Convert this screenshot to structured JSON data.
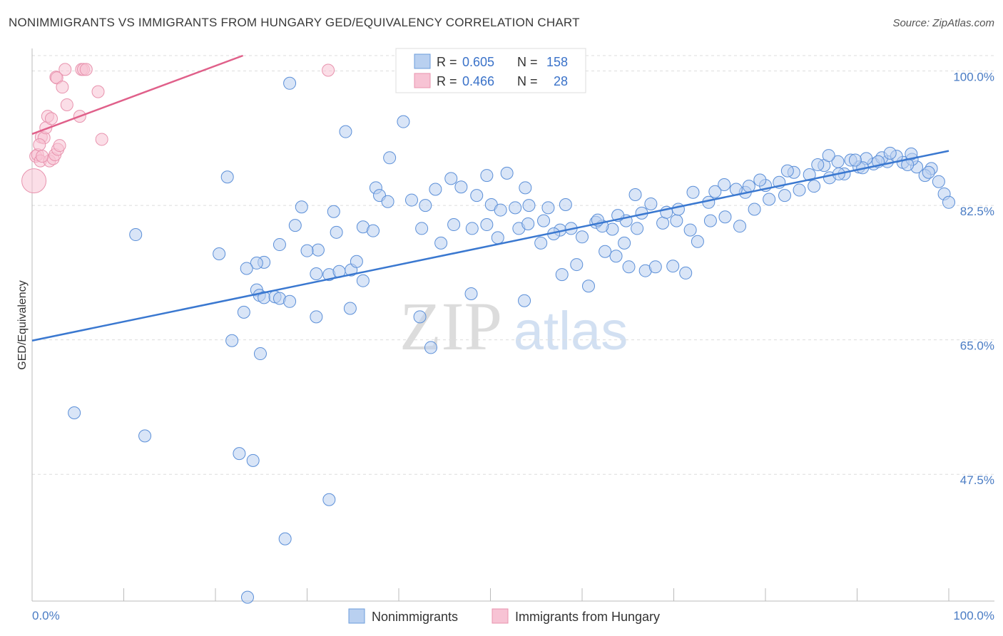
{
  "title": "NONIMMIGRANTS VS IMMIGRANTS FROM HUNGARY GED/EQUIVALENCY CORRELATION CHART",
  "source": "Source: ZipAtlas.com",
  "watermark": {
    "zip": "ZIP",
    "atlas": "atlas"
  },
  "colors": {
    "blue": "#3a78d0",
    "blue_fill": "#b9d0f0",
    "pink": "#e0608a",
    "pink_fill": "#f7c3d4",
    "grid": "#dddddd",
    "tick_text": "#4a7cc4"
  },
  "chart_data": {
    "type": "scatter",
    "title": "NONIMMIGRANTS VS IMMIGRANTS FROM HUNGARY GED/EQUIVALENCY CORRELATION CHART",
    "xlabel": "",
    "ylabel": "GED/Equivalency",
    "xlim": [
      0,
      100
    ],
    "ylim": [
      31,
      102
    ],
    "x_tick_labels": [
      "0.0%",
      "100.0%"
    ],
    "y_ticks": [
      47.5,
      65.0,
      82.5,
      100.0
    ],
    "y_tick_labels": [
      "47.5%",
      "65.0%",
      "82.5%",
      "100.0%"
    ],
    "grid": "horizontal dashed",
    "legend": {
      "placement": "top-center",
      "entries": [
        {
          "r_label": "R =",
          "r": "0.605",
          "n_label": "N =",
          "n": "158"
        },
        {
          "r_label": "R =",
          "r": "0.466",
          "n_label": "N =",
          "n": "28"
        }
      ]
    },
    "bottom_legend": [
      "Nonimmigrants",
      "Immigrants from Hungary"
    ],
    "series": [
      {
        "name": "Nonimmigrants",
        "color": "#3a78d0",
        "trendline": {
          "x": [
            0,
            100
          ],
          "y": [
            64.9,
            89.6
          ]
        },
        "points": [
          [
            28.1,
            98.4
          ],
          [
            34.2,
            92.1
          ],
          [
            40.5,
            93.4
          ],
          [
            39.0,
            88.7
          ],
          [
            21.3,
            86.2
          ],
          [
            37.5,
            84.8
          ],
          [
            37.9,
            83.8
          ],
          [
            38.8,
            83.0
          ],
          [
            29.4,
            82.3
          ],
          [
            32.9,
            81.7
          ],
          [
            36.1,
            79.7
          ],
          [
            33.2,
            79.0
          ],
          [
            28.7,
            79.9
          ],
          [
            37.2,
            79.2
          ],
          [
            11.3,
            78.7
          ],
          [
            27.0,
            77.4
          ],
          [
            20.4,
            76.2
          ],
          [
            31.2,
            76.7
          ],
          [
            30.0,
            76.6
          ],
          [
            25.3,
            75.1
          ],
          [
            24.5,
            75.0
          ],
          [
            23.4,
            74.3
          ],
          [
            34.8,
            74.1
          ],
          [
            35.4,
            75.2
          ],
          [
            31.0,
            73.6
          ],
          [
            32.4,
            73.5
          ],
          [
            33.5,
            73.9
          ],
          [
            36.1,
            72.7
          ],
          [
            24.5,
            71.5
          ],
          [
            24.8,
            70.8
          ],
          [
            25.3,
            70.5
          ],
          [
            26.5,
            70.6
          ],
          [
            27.0,
            70.4
          ],
          [
            28.1,
            70.0
          ],
          [
            23.1,
            68.6
          ],
          [
            34.7,
            69.1
          ],
          [
            31.0,
            68.0
          ],
          [
            42.3,
            68.0
          ],
          [
            21.8,
            64.9
          ],
          [
            24.9,
            63.2
          ],
          [
            43.5,
            64.0
          ],
          [
            4.6,
            55.5
          ],
          [
            12.3,
            52.5
          ],
          [
            22.6,
            50.2
          ],
          [
            24.1,
            49.3
          ],
          [
            32.4,
            44.2
          ],
          [
            27.6,
            39.1
          ],
          [
            23.5,
            31.5
          ],
          [
            45.7,
            86.0
          ],
          [
            46.8,
            84.9
          ],
          [
            48.5,
            83.8
          ],
          [
            50.1,
            82.6
          ],
          [
            51.1,
            81.9
          ],
          [
            52.7,
            82.2
          ],
          [
            54.2,
            82.5
          ],
          [
            46.0,
            80.0
          ],
          [
            48.0,
            79.5
          ],
          [
            49.6,
            80.0
          ],
          [
            53.1,
            79.5
          ],
          [
            55.8,
            80.5
          ],
          [
            57.6,
            79.3
          ],
          [
            55.5,
            77.6
          ],
          [
            58.8,
            79.5
          ],
          [
            60.0,
            78.4
          ],
          [
            61.5,
            80.3
          ],
          [
            63.3,
            79.4
          ],
          [
            64.8,
            80.5
          ],
          [
            66.0,
            79.5
          ],
          [
            62.2,
            79.8
          ],
          [
            64.6,
            77.6
          ],
          [
            62.5,
            76.5
          ],
          [
            63.7,
            75.9
          ],
          [
            65.1,
            74.5
          ],
          [
            66.9,
            74.0
          ],
          [
            68.0,
            74.5
          ],
          [
            69.9,
            74.6
          ],
          [
            71.3,
            73.7
          ],
          [
            66.5,
            81.5
          ],
          [
            68.8,
            80.2
          ],
          [
            70.3,
            80.5
          ],
          [
            71.8,
            79.3
          ],
          [
            72.6,
            77.8
          ],
          [
            74.0,
            80.5
          ],
          [
            75.6,
            81.0
          ],
          [
            77.2,
            79.8
          ],
          [
            78.8,
            82.0
          ],
          [
            80.4,
            83.3
          ],
          [
            82.1,
            83.8
          ],
          [
            83.7,
            84.5
          ],
          [
            85.3,
            85.0
          ],
          [
            87.0,
            86.1
          ],
          [
            88.6,
            86.6
          ],
          [
            90.2,
            87.5
          ],
          [
            91.8,
            87.9
          ],
          [
            93.3,
            88.2
          ],
          [
            95.0,
            88.1
          ],
          [
            96.5,
            87.5
          ],
          [
            98.1,
            87.3
          ],
          [
            99.5,
            84.0
          ],
          [
            100.0,
            82.9
          ],
          [
            75.5,
            85.2
          ],
          [
            72.1,
            84.2
          ],
          [
            70.5,
            82.0
          ],
          [
            73.8,
            82.9
          ],
          [
            77.8,
            84.2
          ],
          [
            81.5,
            85.5
          ],
          [
            84.8,
            86.5
          ],
          [
            86.4,
            87.7
          ],
          [
            87.9,
            88.2
          ],
          [
            89.3,
            88.4
          ],
          [
            91.0,
            88.6
          ],
          [
            92.7,
            88.7
          ],
          [
            94.3,
            88.9
          ],
          [
            96.0,
            88.5
          ],
          [
            97.4,
            86.4
          ],
          [
            98.9,
            85.6
          ],
          [
            83.1,
            86.8
          ],
          [
            80.0,
            85.1
          ],
          [
            78.2,
            85.0
          ],
          [
            76.8,
            84.6
          ],
          [
            74.5,
            84.3
          ],
          [
            79.4,
            85.8
          ],
          [
            82.4,
            87.0
          ],
          [
            85.7,
            87.8
          ],
          [
            88.0,
            86.6
          ],
          [
            90.6,
            87.4
          ],
          [
            92.3,
            88.2
          ],
          [
            95.5,
            87.8
          ],
          [
            97.8,
            86.8
          ],
          [
            86.9,
            89.0
          ],
          [
            89.8,
            88.4
          ],
          [
            93.6,
            89.3
          ],
          [
            95.9,
            89.2
          ],
          [
            60.7,
            72.0
          ],
          [
            57.8,
            73.5
          ],
          [
            59.4,
            74.8
          ],
          [
            56.9,
            78.8
          ],
          [
            54.1,
            80.1
          ],
          [
            47.9,
            71.0
          ],
          [
            53.7,
            70.1
          ],
          [
            50.8,
            78.3
          ],
          [
            44.6,
            77.6
          ],
          [
            42.5,
            79.5
          ],
          [
            42.9,
            82.5
          ],
          [
            41.4,
            83.2
          ],
          [
            44.0,
            84.6
          ],
          [
            49.6,
            86.4
          ],
          [
            51.8,
            86.7
          ],
          [
            53.8,
            84.8
          ],
          [
            56.3,
            82.2
          ],
          [
            58.2,
            82.6
          ],
          [
            61.7,
            80.6
          ],
          [
            63.9,
            81.2
          ],
          [
            65.8,
            83.9
          ],
          [
            67.5,
            82.7
          ],
          [
            69.2,
            81.6
          ]
        ]
      },
      {
        "name": "Immigrants from Hungary",
        "color": "#e0608a",
        "trendline": {
          "x": [
            0,
            23
          ],
          "y": [
            91.8,
            102.0
          ]
        },
        "points": [
          [
            0.2,
            85.7
          ],
          [
            0.4,
            88.9
          ],
          [
            0.6,
            89.1
          ],
          [
            0.9,
            88.3
          ],
          [
            1.0,
            91.4
          ],
          [
            1.3,
            91.3
          ],
          [
            1.5,
            92.6
          ],
          [
            1.7,
            94.1
          ],
          [
            1.9,
            88.3
          ],
          [
            2.1,
            93.8
          ],
          [
            2.3,
            88.6
          ],
          [
            2.5,
            89.1
          ],
          [
            2.8,
            89.8
          ],
          [
            3.0,
            90.3
          ],
          [
            2.6,
            99.2
          ],
          [
            2.7,
            99.1
          ],
          [
            3.3,
            97.9
          ],
          [
            3.6,
            100.2
          ],
          [
            5.4,
            100.2
          ],
          [
            5.6,
            100.2
          ],
          [
            5.9,
            100.2
          ],
          [
            7.2,
            97.3
          ],
          [
            7.6,
            91.1
          ],
          [
            3.8,
            95.6
          ],
          [
            5.2,
            94.1
          ],
          [
            32.3,
            100.1
          ],
          [
            0.8,
            90.4
          ],
          [
            1.1,
            88.9
          ]
        ]
      }
    ]
  }
}
